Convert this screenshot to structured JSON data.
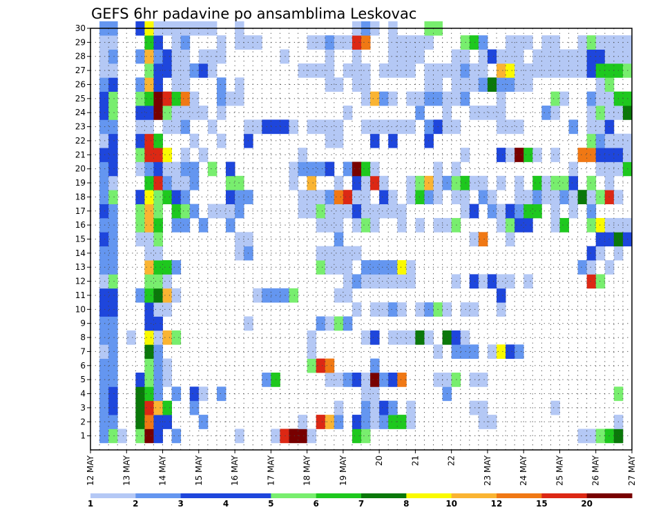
{
  "chart_data": {
    "type": "heatmap",
    "title": "GEFS 6hr padavine po ansamblima Leskovac",
    "xlabel": "",
    "ylabel": "",
    "y_ticks": [
      1,
      2,
      3,
      4,
      5,
      6,
      7,
      8,
      9,
      10,
      11,
      12,
      13,
      14,
      15,
      16,
      17,
      18,
      19,
      20,
      21,
      22,
      23,
      24,
      25,
      26,
      27,
      28,
      29,
      30
    ],
    "x_tick_labels": [
      "12 MAY",
      "13 MAY",
      "14 MAY",
      "15 MAY",
      "16 MAY",
      "17 MAY",
      "18 MAY",
      "19 MAY",
      "20",
      "21",
      "22",
      "23 MAY",
      "24 MAY",
      "25 MAY",
      "26 MAY",
      "27 MAY"
    ],
    "x_range": [
      0,
      60
    ],
    "y_range": [
      0,
      30
    ],
    "grid": true,
    "grid_style": "dotted",
    "colorbar": {
      "boundaries": [
        1,
        2,
        3,
        4,
        5,
        6,
        7,
        8,
        10,
        12,
        15,
        20
      ],
      "labels": [
        "1",
        "2",
        "3",
        "4",
        "5",
        "6",
        "7",
        "8",
        "10",
        "12",
        "15",
        "20"
      ],
      "colors": [
        "#b4c8f5",
        "#6496f0",
        "#1e46dc",
        "#1e46dc",
        "#78ee6e",
        "#1ec81e",
        "#0a780a",
        "#fafa00",
        "#fab432",
        "#f07814",
        "#dc2814",
        "#780000"
      ]
    },
    "series": [
      {
        "member": 1,
        "levels": {
          "1": 2,
          "2": 5,
          "3": 1,
          "5": 5,
          "6": 12,
          "7": 3,
          "9": 2,
          "16": 1,
          "20": 1,
          "21": 11,
          "22": 12,
          "23": 12,
          "24": 1,
          "29": 6,
          "30": 5,
          "54": 1,
          "55": 1,
          "56": 5,
          "57": 6,
          "58": 7
        }
      },
      {
        "member": 2,
        "levels": {
          "1": 2,
          "2": 2,
          "5": 7,
          "6": 10,
          "7": 3,
          "8": 3,
          "12": 2,
          "23": 1,
          "25": 11,
          "26": 9,
          "27": 2,
          "29": 3,
          "30": 2,
          "31": 1,
          "32": 2,
          "33": 6,
          "34": 6,
          "35": 1,
          "43": 1,
          "44": 1,
          "58": 1
        }
      },
      {
        "member": 3,
        "levels": {
          "1": 2,
          "2": 3,
          "5": 7,
          "6": 11,
          "7": 9,
          "8": 6,
          "11": 2,
          "27": 1,
          "30": 2,
          "31": 1,
          "32": 3,
          "33": 2,
          "35": 1,
          "42": 1,
          "43": 1,
          "51": 1
        }
      },
      {
        "member": 4,
        "levels": {
          "1": 2,
          "2": 3,
          "5": 7,
          "6": 6,
          "7": 2,
          "9": 2,
          "11": 3,
          "12": 1,
          "14": 2,
          "30": 1,
          "31": 1,
          "39": 2,
          "58": 5
        }
      },
      {
        "member": 5,
        "levels": {
          "1": 2,
          "2": 2,
          "5": 3,
          "6": 5,
          "7": 2,
          "8": 1,
          "19": 2,
          "20": 6,
          "26": 1,
          "27": 1,
          "28": 2,
          "29": 3,
          "30": 1,
          "31": 12,
          "32": 2,
          "33": 3,
          "34": 10,
          "38": 1,
          "39": 1,
          "40": 5,
          "42": 1,
          "43": 1
        }
      },
      {
        "member": 6,
        "levels": {
          "1": 2,
          "2": 2,
          "6": 5,
          "7": 2,
          "8": 1,
          "24": 5,
          "25": 11,
          "26": 10,
          "31": 2
        }
      },
      {
        "member": 7,
        "levels": {
          "1": 1,
          "2": 2,
          "6": 7,
          "7": 2,
          "24": 1,
          "38": 1,
          "40": 2,
          "41": 2,
          "42": 2,
          "44": 1,
          "45": 8,
          "46": 3,
          "47": 2
        }
      },
      {
        "member": 8,
        "levels": {
          "1": 2,
          "2": 2,
          "4": 1,
          "6": 8,
          "7": 1,
          "8": 9,
          "9": 5,
          "24": 1,
          "30": 1,
          "31": 3,
          "33": 1,
          "34": 1,
          "35": 1,
          "36": 7,
          "37": 1,
          "39": 7,
          "40": 3,
          "41": 1
        }
      },
      {
        "member": 9,
        "levels": {
          "1": 2,
          "2": 2,
          "6": 3,
          "7": 3,
          "17": 1,
          "25": 2,
          "26": 1,
          "27": 5,
          "28": 2
        }
      },
      {
        "member": 10,
        "levels": {
          "1": 3,
          "2": 3,
          "6": 3,
          "7": 1,
          "8": 1,
          "29": 1,
          "31": 1,
          "32": 1,
          "33": 2,
          "34": 1,
          "36": 1,
          "37": 2,
          "38": 5,
          "39": 1,
          "41": 1,
          "42": 1,
          "45": 1
        }
      },
      {
        "member": 11,
        "levels": {
          "1": 3,
          "2": 3,
          "5": 2,
          "6": 6,
          "7": 7,
          "8": 9,
          "9": 1,
          "18": 1,
          "19": 2,
          "20": 2,
          "21": 2,
          "22": 5,
          "27": 1,
          "28": 1,
          "45": 3
        }
      },
      {
        "member": 12,
        "levels": {
          "1": 1,
          "2": 5,
          "6": 5,
          "7": 5,
          "8": 1,
          "28": 1,
          "29": 2,
          "30": 1,
          "31": 1,
          "32": 1,
          "33": 1,
          "34": 1,
          "35": 1,
          "40": 1,
          "42": 3,
          "43": 1,
          "44": 3,
          "45": 1,
          "46": 1,
          "48": 1,
          "55": 11,
          "56": 5
        }
      },
      {
        "member": 13,
        "levels": {
          "1": 2,
          "2": 2,
          "6": 9,
          "7": 6,
          "8": 6,
          "9": 2,
          "25": 5,
          "26": 1,
          "27": 1,
          "28": 1,
          "30": 2,
          "31": 2,
          "32": 2,
          "33": 2,
          "34": 8,
          "35": 1,
          "54": 2,
          "55": 1,
          "57": 1
        }
      },
      {
        "member": 14,
        "levels": {
          "1": 2,
          "2": 2,
          "6": 1,
          "7": 1,
          "16": 1,
          "17": 2,
          "25": 1,
          "26": 1,
          "27": 1,
          "28": 1,
          "29": 1,
          "55": 3,
          "56": 1,
          "58": 1
        }
      },
      {
        "member": 15,
        "levels": {
          "1": 3,
          "2": 2,
          "5": 1,
          "6": 1,
          "7": 5,
          "16": 1,
          "17": 1,
          "27": 2,
          "42": 1,
          "43": 10,
          "46": 1,
          "56": 3,
          "57": 3,
          "58": 7,
          "59": 3
        }
      },
      {
        "member": 16,
        "levels": {
          "1": 2,
          "2": 2,
          "5": 5,
          "6": 9,
          "7": 6,
          "9": 2,
          "10": 2,
          "12": 2,
          "15": 2,
          "25": 1,
          "26": 1,
          "27": 1,
          "29": 1,
          "30": 5,
          "31": 1,
          "34": 1,
          "36": 1,
          "38": 1,
          "39": 1,
          "40": 5,
          "45": 1,
          "46": 5,
          "47": 3,
          "48": 3,
          "51": 1,
          "52": 6,
          "55": 5,
          "56": 8,
          "57": 1,
          "58": 1,
          "59": 1
        }
      },
      {
        "member": 17,
        "levels": {
          "1": 3,
          "2": 2,
          "5": 5,
          "6": 9,
          "7": 5,
          "9": 6,
          "10": 5,
          "11": 2,
          "13": 1,
          "14": 1,
          "15": 1,
          "16": 2,
          "23": 1,
          "24": 1,
          "25": 5,
          "26": 1,
          "27": 1,
          "28": 1,
          "29": 3,
          "30": 1,
          "31": 1,
          "32": 1,
          "33": 1,
          "34": 1,
          "41": 1,
          "42": 3,
          "44": 2,
          "45": 1,
          "46": 3,
          "47": 2,
          "48": 6,
          "49": 6,
          "51": 1,
          "53": 1,
          "55": 2
        }
      },
      {
        "member": 18,
        "levels": {
          "1": 2,
          "2": 5,
          "5": 3,
          "6": 8,
          "7": 5,
          "8": 6,
          "9": 3,
          "10": 2,
          "15": 3,
          "16": 2,
          "17": 2,
          "23": 1,
          "24": 1,
          "25": 1,
          "26": 2,
          "27": 10,
          "28": 11,
          "29": 1,
          "30": 1,
          "32": 3,
          "33": 1,
          "35": 1,
          "36": 6,
          "37": 2,
          "38": 1,
          "40": 1,
          "41": 1,
          "43": 2,
          "44": 1,
          "47": 1,
          "48": 1,
          "49": 2,
          "50": 1,
          "51": 1,
          "52": 2,
          "53": 1,
          "54": 7,
          "55": 1,
          "56": 5,
          "57": 11,
          "58": 1
        }
      },
      {
        "member": 19,
        "levels": {
          "1": 2,
          "2": 1,
          "6": 6,
          "7": 11,
          "8": 2,
          "9": 1,
          "10": 1,
          "11": 2,
          "15": 5,
          "16": 5,
          "22": 1,
          "24": 9,
          "27": 1,
          "29": 3,
          "30": 1,
          "31": 11,
          "32": 1,
          "35": 1,
          "36": 5,
          "37": 9,
          "38": 1,
          "39": 2,
          "40": 5,
          "41": 6,
          "42": 1,
          "43": 1,
          "45": 1,
          "47": 1,
          "49": 6,
          "50": 1,
          "51": 5,
          "52": 5,
          "53": 3,
          "55": 5,
          "57": 1
        }
      },
      {
        "member": 20,
        "levels": {
          "1": 2,
          "2": 3,
          "5": 1,
          "6": 2,
          "7": 3,
          "8": 1,
          "9": 1,
          "10": 2,
          "11": 2,
          "13": 5,
          "15": 3,
          "22": 1,
          "23": 2,
          "24": 2,
          "25": 2,
          "26": 3,
          "28": 2,
          "29": 12,
          "30": 6,
          "31": 1,
          "38": 1,
          "40": 1,
          "53": 1,
          "56": 1,
          "57": 1,
          "58": 1,
          "59": 6
        }
      },
      {
        "member": 21,
        "levels": {
          "1": 3,
          "2": 3,
          "5": 5,
          "6": 11,
          "7": 11,
          "8": 8,
          "10": 1,
          "12": 1,
          "23": 1,
          "41": 1,
          "45": 3,
          "46": 1,
          "47": 12,
          "48": 6,
          "49": 1,
          "51": 1,
          "54": 10,
          "55": 10,
          "56": 3,
          "57": 3,
          "58": 3,
          "59": 1
        }
      },
      {
        "member": 22,
        "levels": {
          "1": 1,
          "2": 3,
          "5": 3,
          "6": 11,
          "7": 6,
          "11": 1,
          "14": 1,
          "17": 3,
          "26": 1,
          "27": 1,
          "31": 3,
          "33": 3,
          "37": 3,
          "55": 5,
          "56": 2,
          "57": 1,
          "58": 1,
          "59": 1
        }
      },
      {
        "member": 23,
        "levels": {
          "1": 2,
          "2": 2,
          "5": 1,
          "6": 1,
          "8": 1,
          "9": 1,
          "10": 2,
          "13": 1,
          "17": 1,
          "18": 1,
          "19": 3,
          "20": 3,
          "21": 3,
          "22": 1,
          "24": 1,
          "25": 1,
          "26": 1,
          "27": 1,
          "30": 1,
          "31": 1,
          "32": 1,
          "33": 1,
          "34": 1,
          "35": 1,
          "37": 2,
          "38": 3,
          "39": 1,
          "40": 1,
          "45": 1,
          "46": 1,
          "47": 1,
          "53": 2,
          "55": 1,
          "56": 1,
          "57": 3
        }
      },
      {
        "member": 24,
        "levels": {
          "1": 3,
          "2": 5,
          "5": 3,
          "6": 3,
          "7": 12,
          "8": 5,
          "9": 1,
          "10": 1,
          "11": 1,
          "12": 1,
          "14": 1,
          "28": 1,
          "36": 2,
          "39": 1,
          "42": 1,
          "43": 1,
          "44": 1,
          "45": 1,
          "50": 2,
          "51": 1,
          "55": 1,
          "56": 5,
          "57": 1,
          "58": 1,
          "59": 7
        }
      },
      {
        "member": 25,
        "levels": {
          "1": 3,
          "2": 5,
          "5": 5,
          "6": 6,
          "7": 12,
          "8": 11,
          "9": 6,
          "10": 10,
          "11": 1,
          "14": 2,
          "15": 1,
          "16": 1,
          "30": 1,
          "31": 9,
          "32": 2,
          "33": 1,
          "35": 1,
          "36": 1,
          "37": 2,
          "38": 2,
          "39": 1,
          "40": 1,
          "41": 2,
          "45": 1,
          "51": 5,
          "52": 1,
          "55": 2,
          "56": 1,
          "57": 1,
          "58": 6,
          "59": 6
        }
      },
      {
        "member": 26,
        "levels": {
          "1": 2,
          "2": 3,
          "5": 2,
          "6": 9,
          "7": 3,
          "9": 1,
          "10": 1,
          "14": 2,
          "16": 1,
          "26": 1,
          "27": 1,
          "29": 1,
          "30": 1,
          "37": 1,
          "38": 1,
          "40": 1,
          "41": 1,
          "42": 1,
          "43": 2,
          "44": 7,
          "45": 2,
          "46": 2,
          "47": 1,
          "48": 1,
          "56": 1,
          "57": 5
        }
      },
      {
        "member": 27,
        "levels": {
          "1": 1,
          "2": 1,
          "6": 5,
          "7": 3,
          "8": 3,
          "9": 1,
          "10": 1,
          "11": 2,
          "12": 3,
          "13": 1,
          "23": 1,
          "24": 1,
          "25": 1,
          "26": 1,
          "28": 1,
          "29": 1,
          "30": 1,
          "32": 1,
          "33": 1,
          "34": 1,
          "35": 1,
          "37": 1,
          "38": 1,
          "39": 1,
          "40": 1,
          "41": 2,
          "42": 1,
          "43": 1,
          "45": 9,
          "46": 8,
          "47": 1,
          "48": 1,
          "49": 1,
          "50": 1,
          "51": 1,
          "52": 1,
          "53": 1,
          "54": 1,
          "55": 3,
          "56": 6,
          "57": 6,
          "58": 6,
          "59": 5
        }
      },
      {
        "member": 28,
        "levels": {
          "1": 1,
          "2": 2,
          "5": 2,
          "6": 9,
          "7": 2,
          "8": 3,
          "9": 1,
          "10": 1,
          "12": 1,
          "13": 1,
          "14": 1,
          "21": 1,
          "26": 1,
          "29": 1,
          "33": 1,
          "34": 1,
          "35": 1,
          "36": 1,
          "40": 1,
          "41": 1,
          "43": 1,
          "44": 3,
          "45": 1,
          "46": 1,
          "47": 1,
          "49": 1,
          "50": 1,
          "51": 1,
          "52": 1,
          "53": 1,
          "54": 1,
          "55": 3,
          "56": 3,
          "57": 1,
          "58": 1,
          "59": 1
        }
      },
      {
        "member": 29,
        "levels": {
          "1": 1,
          "2": 1,
          "6": 6,
          "7": 3,
          "9": 1,
          "10": 2,
          "14": 1,
          "16": 1,
          "17": 1,
          "18": 1,
          "24": 1,
          "25": 1,
          "26": 2,
          "27": 1,
          "28": 1,
          "29": 11,
          "30": 10,
          "33": 1,
          "34": 1,
          "35": 1,
          "36": 1,
          "37": 1,
          "41": 5,
          "42": 6,
          "43": 2,
          "46": 1,
          "47": 1,
          "48": 1,
          "50": 1,
          "51": 1,
          "54": 1,
          "55": 5,
          "56": 1,
          "57": 1,
          "58": 1,
          "59": 1
        }
      },
      {
        "member": 30,
        "levels": {
          "1": 2,
          "2": 2,
          "5": 3,
          "6": 8,
          "7": 1,
          "8": 1,
          "9": 1,
          "10": 1,
          "11": 1,
          "12": 1,
          "13": 1,
          "16": 1,
          "29": 1,
          "30": 2,
          "31": 1,
          "33": 1,
          "37": 5,
          "38": 5
        }
      }
    ]
  }
}
